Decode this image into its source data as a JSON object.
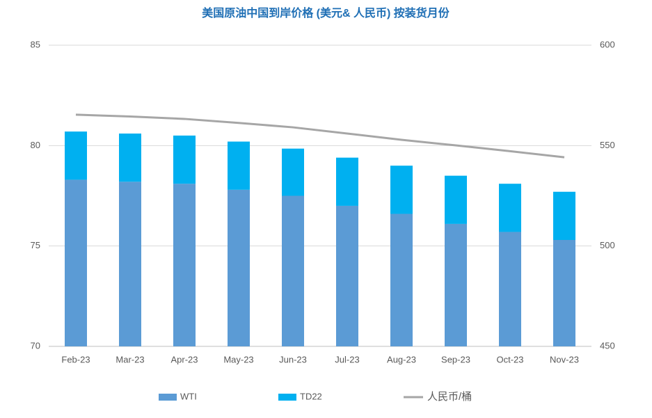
{
  "chart_data": {
    "type": "bar",
    "stacked": true,
    "title": "美国原油中国到岸价格 (美元& 人民币) 按装货月份",
    "categories": [
      "Feb-23",
      "Mar-23",
      "Apr-23",
      "May-23",
      "Jun-23",
      "Jul-23",
      "Aug-23",
      "Sep-23",
      "Oct-23",
      "Nov-23"
    ],
    "series": [
      {
        "name": "WTI",
        "color": "#5b9bd5",
        "values": [
          78.3,
          78.2,
          78.1,
          77.8,
          77.5,
          77.0,
          76.6,
          76.1,
          75.7,
          75.3
        ]
      },
      {
        "name": "TD22",
        "color": "#00b0f0",
        "values": [
          2.4,
          2.4,
          2.4,
          2.4,
          2.35,
          2.4,
          2.4,
          2.4,
          2.4,
          2.4
        ]
      },
      {
        "name": "人民币/桶",
        "color": "#a6a6a6",
        "type": "line",
        "axis": "y2",
        "values": [
          565.4,
          564.5,
          563.3,
          561.3,
          559.1,
          556.0,
          552.9,
          550.1,
          547.2,
          544.2
        ]
      }
    ],
    "ylim": [
      70,
      85
    ],
    "yticks": [
      70,
      75,
      80,
      85
    ],
    "y2lim": [
      450,
      600
    ],
    "y2ticks": [
      450,
      500,
      550,
      600
    ],
    "grid": true,
    "legend": "bottom"
  }
}
